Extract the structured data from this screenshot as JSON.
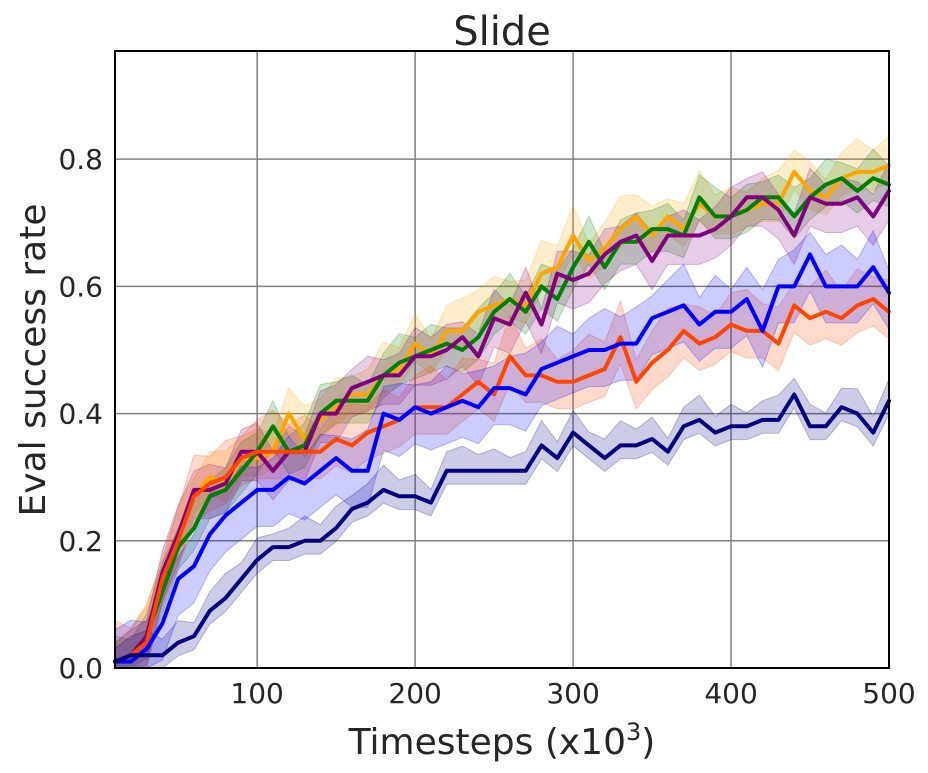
{
  "chart_data": {
    "type": "line",
    "title": "Slide",
    "xlabel": "Timesteps (x10",
    "xlabel_sup": "3",
    "xlabel_close": ")",
    "ylabel": "Eval success rate",
    "xlim": [
      10,
      500
    ],
    "ylim": [
      0,
      0.97
    ],
    "xticks": [
      100,
      200,
      300,
      400,
      500
    ],
    "yticks": [
      0.0,
      0.2,
      0.4,
      0.6,
      0.8
    ],
    "xtick_labels": [
      "100",
      "200",
      "300",
      "400",
      "500"
    ],
    "ytick_labels": [
      "0.0",
      "0.2",
      "0.4",
      "0.6",
      "0.8"
    ],
    "grid": true,
    "legend": "none",
    "x": [
      10,
      20,
      30,
      40,
      50,
      60,
      70,
      80,
      90,
      100,
      110,
      120,
      130,
      140,
      150,
      160,
      170,
      180,
      190,
      200,
      210,
      220,
      230,
      240,
      250,
      260,
      270,
      280,
      290,
      300,
      310,
      320,
      330,
      340,
      350,
      360,
      370,
      380,
      390,
      400,
      410,
      420,
      430,
      440,
      450,
      460,
      470,
      480,
      490,
      500
    ],
    "series": [
      {
        "color": "#ffa500",
        "band": 0.04,
        "values": [
          0.01,
          0.02,
          0.05,
          0.13,
          0.21,
          0.27,
          0.3,
          0.29,
          0.33,
          0.33,
          0.34,
          0.4,
          0.36,
          0.39,
          0.41,
          0.43,
          0.43,
          0.46,
          0.47,
          0.51,
          0.49,
          0.53,
          0.53,
          0.56,
          0.57,
          0.58,
          0.57,
          0.62,
          0.63,
          0.68,
          0.64,
          0.66,
          0.69,
          0.71,
          0.68,
          0.71,
          0.69,
          0.73,
          0.71,
          0.71,
          0.72,
          0.73,
          0.73,
          0.78,
          0.75,
          0.74,
          0.77,
          0.78,
          0.78,
          0.79
        ]
      },
      {
        "color": "#008000",
        "band": 0.035,
        "values": [
          0.01,
          0.02,
          0.05,
          0.12,
          0.19,
          0.22,
          0.27,
          0.28,
          0.31,
          0.34,
          0.38,
          0.34,
          0.35,
          0.4,
          0.42,
          0.42,
          0.42,
          0.46,
          0.48,
          0.49,
          0.5,
          0.51,
          0.5,
          0.52,
          0.56,
          0.58,
          0.56,
          0.6,
          0.58,
          0.63,
          0.67,
          0.63,
          0.67,
          0.67,
          0.69,
          0.69,
          0.68,
          0.74,
          0.71,
          0.71,
          0.72,
          0.74,
          0.74,
          0.71,
          0.74,
          0.76,
          0.77,
          0.75,
          0.77,
          0.76
        ]
      },
      {
        "color": "#800080",
        "band": 0.035,
        "values": [
          0.01,
          0.02,
          0.05,
          0.15,
          0.21,
          0.28,
          0.28,
          0.29,
          0.34,
          0.34,
          0.31,
          0.34,
          0.34,
          0.4,
          0.4,
          0.44,
          0.45,
          0.46,
          0.46,
          0.49,
          0.49,
          0.5,
          0.52,
          0.49,
          0.55,
          0.54,
          0.59,
          0.54,
          0.62,
          0.61,
          0.62,
          0.65,
          0.67,
          0.68,
          0.64,
          0.68,
          0.68,
          0.68,
          0.69,
          0.71,
          0.74,
          0.74,
          0.72,
          0.68,
          0.74,
          0.73,
          0.73,
          0.74,
          0.71,
          0.75
        ]
      },
      {
        "color": "#ff4500",
        "band": 0.05,
        "values": [
          0.01,
          0.02,
          0.04,
          0.14,
          0.2,
          0.27,
          0.29,
          0.3,
          0.33,
          0.34,
          0.34,
          0.34,
          0.34,
          0.34,
          0.36,
          0.35,
          0.37,
          0.38,
          0.39,
          0.41,
          0.41,
          0.41,
          0.43,
          0.45,
          0.43,
          0.49,
          0.46,
          0.46,
          0.45,
          0.45,
          0.46,
          0.47,
          0.52,
          0.45,
          0.48,
          0.5,
          0.53,
          0.51,
          0.52,
          0.54,
          0.53,
          0.53,
          0.51,
          0.57,
          0.55,
          0.56,
          0.55,
          0.57,
          0.58,
          0.56
        ]
      },
      {
        "color": "#0000ff",
        "band": 0.05,
        "values": [
          0.01,
          0.01,
          0.03,
          0.07,
          0.14,
          0.16,
          0.21,
          0.24,
          0.26,
          0.28,
          0.28,
          0.3,
          0.29,
          0.31,
          0.33,
          0.31,
          0.31,
          0.4,
          0.39,
          0.41,
          0.4,
          0.41,
          0.42,
          0.41,
          0.44,
          0.44,
          0.43,
          0.47,
          0.48,
          0.49,
          0.5,
          0.5,
          0.51,
          0.51,
          0.55,
          0.56,
          0.57,
          0.54,
          0.56,
          0.56,
          0.58,
          0.53,
          0.6,
          0.6,
          0.65,
          0.6,
          0.6,
          0.6,
          0.63,
          0.59
        ]
      },
      {
        "color": "#000080",
        "band": 0.03,
        "values": [
          0.01,
          0.02,
          0.02,
          0.02,
          0.04,
          0.05,
          0.09,
          0.11,
          0.14,
          0.17,
          0.19,
          0.19,
          0.2,
          0.2,
          0.22,
          0.25,
          0.26,
          0.28,
          0.27,
          0.27,
          0.26,
          0.31,
          0.31,
          0.31,
          0.31,
          0.31,
          0.31,
          0.35,
          0.33,
          0.37,
          0.35,
          0.33,
          0.35,
          0.35,
          0.36,
          0.34,
          0.38,
          0.39,
          0.37,
          0.38,
          0.38,
          0.39,
          0.39,
          0.43,
          0.38,
          0.38,
          0.41,
          0.4,
          0.37,
          0.42
        ]
      }
    ]
  }
}
